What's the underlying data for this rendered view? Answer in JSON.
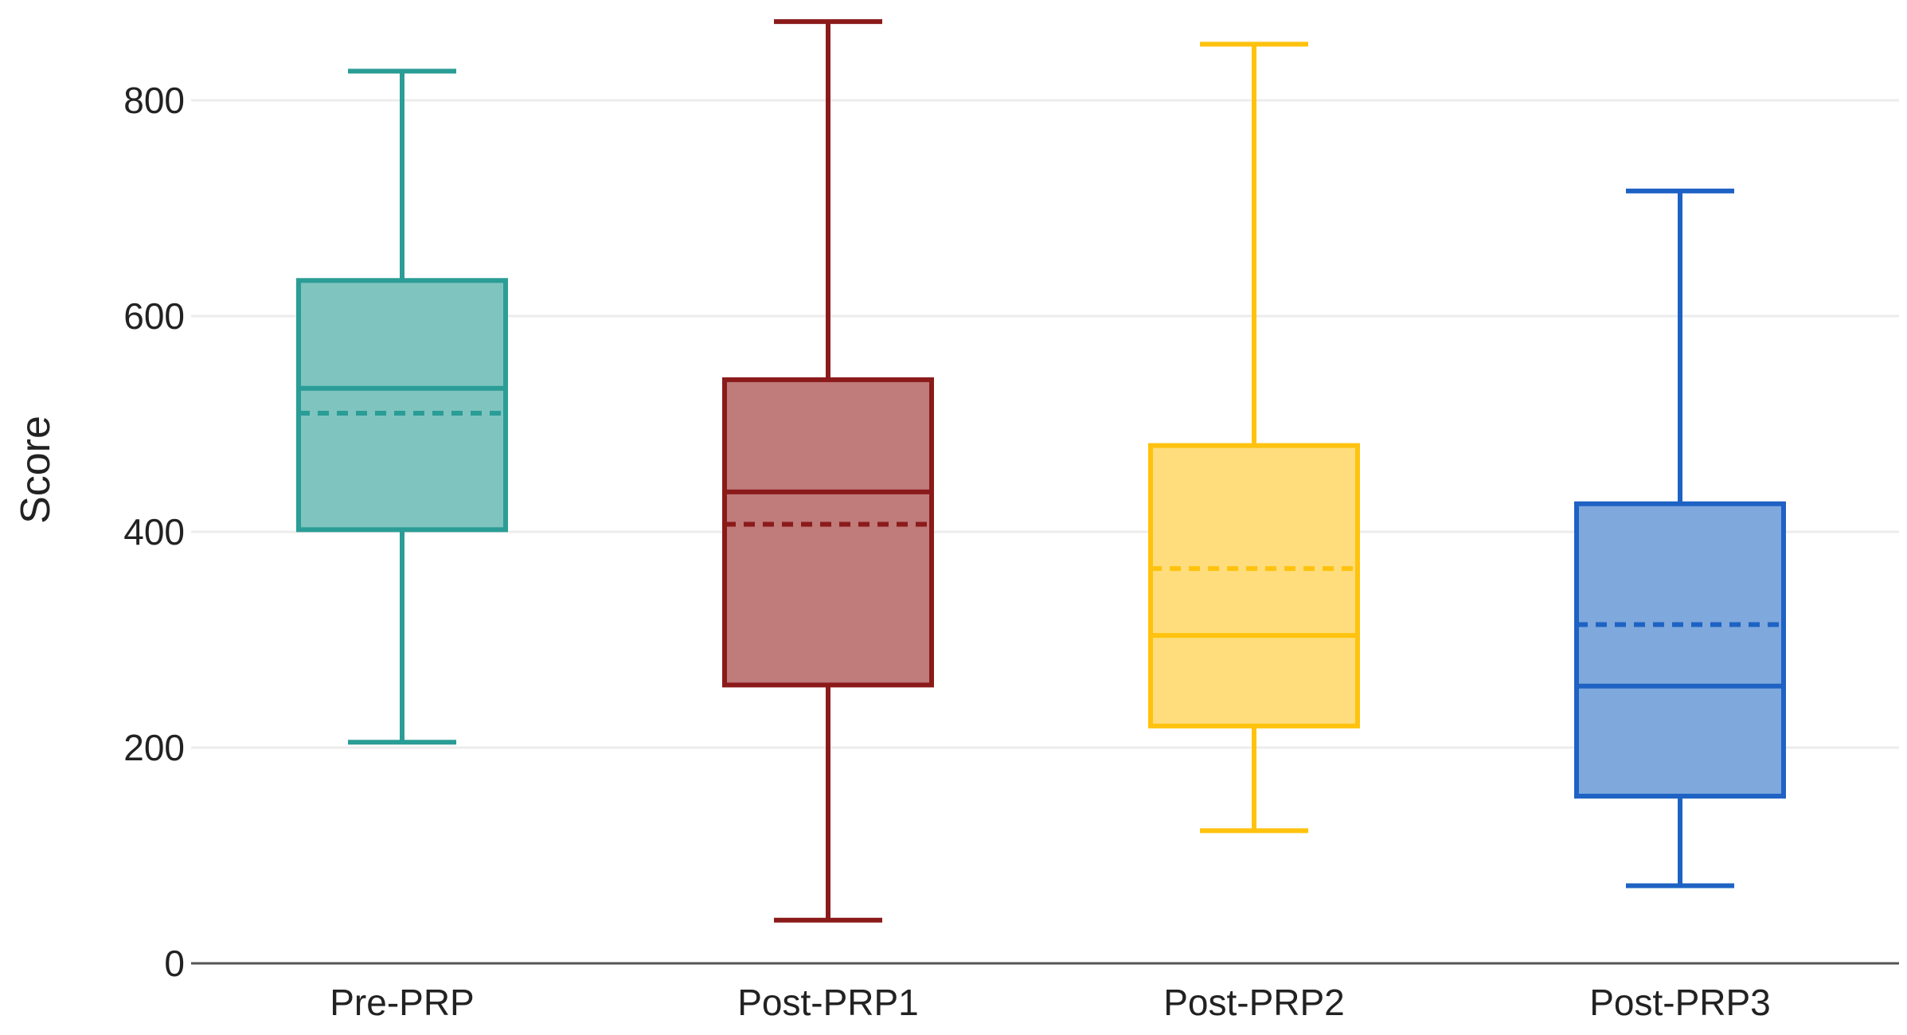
{
  "chart_data": {
    "type": "boxplot",
    "title": "",
    "xlabel": "",
    "ylabel": "Score",
    "ylim": [
      0,
      880
    ],
    "yticks": [
      0,
      200,
      400,
      600,
      800
    ],
    "grid": "horizontal",
    "legend": "none",
    "categories": [
      "Pre-PRP",
      "Post-PRP1",
      "Post-PRP2",
      "Post-PRP3"
    ],
    "series": [
      {
        "category": "Pre-PRP",
        "min": 205,
        "q1": 402,
        "median": 533,
        "mean": 510,
        "q3": 633,
        "max": 827,
        "color": "#2a9d96",
        "fill": "#80c4bf"
      },
      {
        "category": "Post-PRP1",
        "min": 40,
        "q1": 258,
        "median": 437,
        "mean": 407,
        "q3": 541,
        "max": 873,
        "color": "#8b1a1a",
        "fill": "#c07b7b"
      },
      {
        "category": "Post-PRP2",
        "min": 123,
        "q1": 220,
        "median": 304,
        "mean": 366,
        "q3": 480,
        "max": 852,
        "color": "#ffc20e",
        "fill": "#ffdd7c"
      },
      {
        "category": "Post-PRP3",
        "min": 72,
        "q1": 155,
        "median": 257,
        "mean": 314,
        "q3": 426,
        "max": 716,
        "color": "#1e62c4",
        "fill": "#7fa8dc"
      }
    ]
  }
}
